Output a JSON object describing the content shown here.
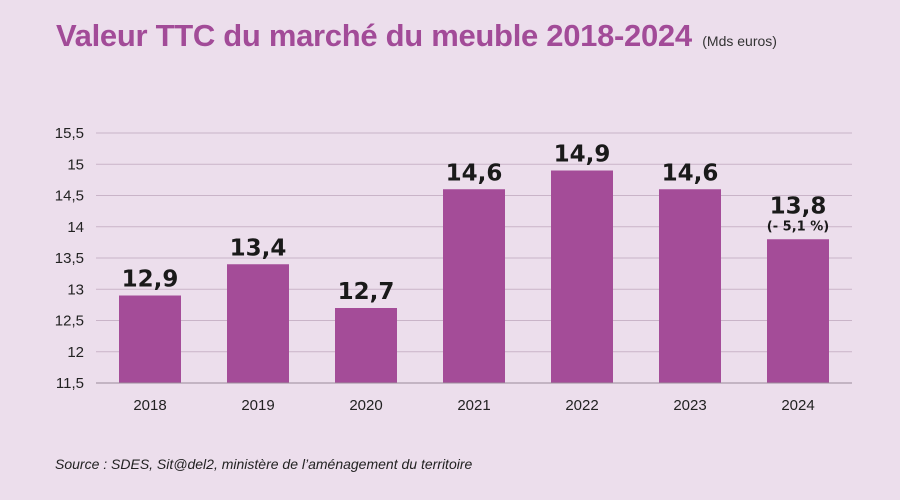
{
  "chart_data": {
    "type": "bar",
    "title": "Valeur TTC du marché du meuble 2018-2024",
    "unit": "(Mds euros)",
    "categories": [
      "2018",
      "2019",
      "2020",
      "2021",
      "2022",
      "2023",
      "2024"
    ],
    "values": [
      12.9,
      13.4,
      12.7,
      14.6,
      14.9,
      14.6,
      13.8
    ],
    "value_labels": [
      "12,9",
      "13,4",
      "12,7",
      "14,6",
      "14,9",
      "14,6",
      "13,8"
    ],
    "annotations": [
      {
        "category": "2024",
        "text": "(- 5,1 %)"
      }
    ],
    "ylim": [
      11.5,
      15.5
    ],
    "yticks": [
      11.5,
      12,
      12.5,
      13,
      13.5,
      14,
      14.5,
      15,
      15.5
    ],
    "ytick_labels": [
      "11,5",
      "12",
      "12,5",
      "13",
      "13,5",
      "14",
      "14,5",
      "15",
      "15,5"
    ],
    "grid": true,
    "bar_color": "#a44c98",
    "xlabel": "",
    "ylabel": ""
  },
  "source": "Source : SDES, Sit@del2, ministère de l’aménagement du territoire"
}
